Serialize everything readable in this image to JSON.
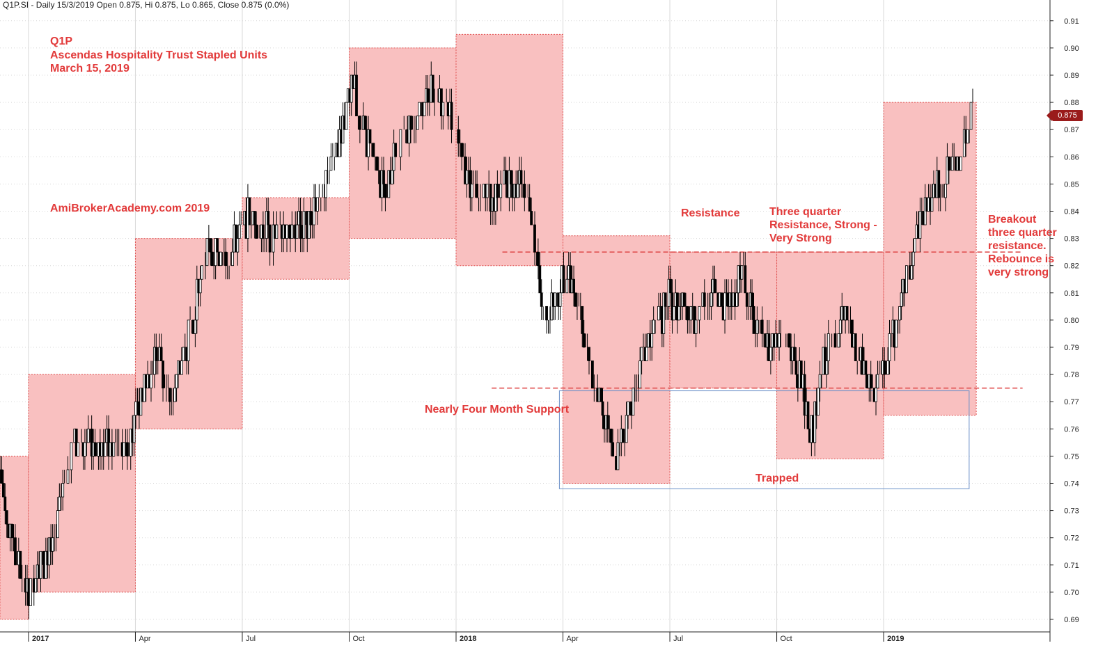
{
  "header": {
    "text": "Q1P.SI - Daily 15/3/2019 Open 0.875, Hi 0.875, Lo 0.865, Close 0.875 (0.0%)"
  },
  "annotations": {
    "title_line1": "Q1P",
    "title_line2": "Ascendas Hospitality Trust Stapled Units",
    "title_line3": "March 15, 2019",
    "watermark": "AmiBrokerAcademy.com  2019",
    "resistance": "Resistance",
    "three_quarter_1": "Three quarter",
    "three_quarter_2": "Resistance, Strong -",
    "three_quarter_3": "Very Strong",
    "breakout_1": "Breakout",
    "breakout_2": "three quarter",
    "breakout_3": "resistance.",
    "breakout_4": "Rebounce is",
    "breakout_5": "very strong",
    "support": "Nearly Four Month Support",
    "trapped": "Trapped"
  },
  "last_price_label": "0.875",
  "colors": {
    "box_fill": "#f9c0c0",
    "box_border": "#e05050",
    "annotation": "#e23a3a",
    "candle": "#000000",
    "trapped_box": "#6a90c8",
    "price_tag": "#9a1b1b"
  },
  "chart_data": {
    "type": "bar",
    "symbol": "Q1P.SI",
    "period": "Daily",
    "ylim": [
      0.685,
      0.915
    ],
    "y_ticks": [
      "0.69",
      "0.70",
      "0.71",
      "0.72",
      "0.73",
      "0.74",
      "0.75",
      "0.76",
      "0.77",
      "0.78",
      "0.79",
      "0.80",
      "0.81",
      "0.82",
      "0.83",
      "0.84",
      "0.85",
      "0.86",
      "0.87",
      "0.88",
      "0.89",
      "0.90",
      "0.91"
    ],
    "x_ticks": [
      "2017",
      "Apr",
      "Jul",
      "Oct",
      "2018",
      "Apr",
      "Jul",
      "Oct",
      "2019"
    ],
    "x_tick_month_index": [
      12,
      15,
      18,
      21,
      24,
      27,
      30,
      33,
      36
    ],
    "x_range_months": [
      11.2,
      38.5
    ],
    "price_path": [
      {
        "m": 11.2,
        "p": 0.745
      },
      {
        "m": 11.6,
        "p": 0.715
      },
      {
        "m": 12.0,
        "p": 0.7
      },
      {
        "m": 12.5,
        "p": 0.712
      },
      {
        "m": 13.0,
        "p": 0.74
      },
      {
        "m": 13.4,
        "p": 0.757
      },
      {
        "m": 13.8,
        "p": 0.755
      },
      {
        "m": 14.3,
        "p": 0.752
      },
      {
        "m": 14.8,
        "p": 0.752
      },
      {
        "m": 15.1,
        "p": 0.772
      },
      {
        "m": 15.6,
        "p": 0.788
      },
      {
        "m": 16.0,
        "p": 0.77
      },
      {
        "m": 16.6,
        "p": 0.8
      },
      {
        "m": 17.0,
        "p": 0.826
      },
      {
        "m": 17.6,
        "p": 0.823
      },
      {
        "m": 18.2,
        "p": 0.838
      },
      {
        "m": 18.9,
        "p": 0.83
      },
      {
        "m": 19.6,
        "p": 0.835
      },
      {
        "m": 20.1,
        "p": 0.84
      },
      {
        "m": 20.6,
        "p": 0.862
      },
      {
        "m": 21.1,
        "p": 0.885
      },
      {
        "m": 21.6,
        "p": 0.862
      },
      {
        "m": 22.0,
        "p": 0.848
      },
      {
        "m": 22.5,
        "p": 0.872
      },
      {
        "m": 22.9,
        "p": 0.872
      },
      {
        "m": 23.3,
        "p": 0.887
      },
      {
        "m": 23.8,
        "p": 0.876
      },
      {
        "m": 24.3,
        "p": 0.852
      },
      {
        "m": 24.9,
        "p": 0.845
      },
      {
        "m": 25.4,
        "p": 0.85
      },
      {
        "m": 25.9,
        "p": 0.852
      },
      {
        "m": 26.1,
        "p": 0.84
      },
      {
        "m": 26.5,
        "p": 0.8
      },
      {
        "m": 27.0,
        "p": 0.815
      },
      {
        "m": 27.4,
        "p": 0.81
      },
      {
        "m": 27.8,
        "p": 0.782
      },
      {
        "m": 28.2,
        "p": 0.76
      },
      {
        "m": 28.5,
        "p": 0.75
      },
      {
        "m": 29.0,
        "p": 0.775
      },
      {
        "m": 29.5,
        "p": 0.795
      },
      {
        "m": 30.0,
        "p": 0.808
      },
      {
        "m": 30.6,
        "p": 0.8
      },
      {
        "m": 31.1,
        "p": 0.81
      },
      {
        "m": 31.7,
        "p": 0.805
      },
      {
        "m": 32.0,
        "p": 0.82
      },
      {
        "m": 32.4,
        "p": 0.798
      },
      {
        "m": 32.8,
        "p": 0.792
      },
      {
        "m": 33.3,
        "p": 0.795
      },
      {
        "m": 33.7,
        "p": 0.775
      },
      {
        "m": 34.0,
        "p": 0.758
      },
      {
        "m": 34.4,
        "p": 0.79
      },
      {
        "m": 34.9,
        "p": 0.8
      },
      {
        "m": 35.3,
        "p": 0.785
      },
      {
        "m": 35.8,
        "p": 0.772
      },
      {
        "m": 36.2,
        "p": 0.79
      },
      {
        "m": 36.6,
        "p": 0.815
      },
      {
        "m": 37.1,
        "p": 0.84
      },
      {
        "m": 37.6,
        "p": 0.85
      },
      {
        "m": 38.1,
        "p": 0.86
      },
      {
        "m": 38.5,
        "p": 0.875
      }
    ],
    "range_boxes": [
      {
        "m0": 11.2,
        "m1": 12.0,
        "low": 0.69,
        "high": 0.75
      },
      {
        "m0": 12.0,
        "m1": 15.0,
        "low": 0.7,
        "high": 0.78
      },
      {
        "m0": 15.0,
        "m1": 18.0,
        "low": 0.76,
        "high": 0.83
      },
      {
        "m0": 18.0,
        "m1": 21.0,
        "low": 0.815,
        "high": 0.845
      },
      {
        "m0": 21.0,
        "m1": 24.0,
        "low": 0.83,
        "high": 0.9
      },
      {
        "m0": 24.0,
        "m1": 27.0,
        "low": 0.82,
        "high": 0.905
      },
      {
        "m0": 27.0,
        "m1": 30.0,
        "low": 0.74,
        "high": 0.831
      },
      {
        "m0": 30.0,
        "m1": 33.0,
        "low": 0.775,
        "high": 0.825
      },
      {
        "m0": 33.0,
        "m1": 36.0,
        "low": 0.749,
        "high": 0.825
      },
      {
        "m0": 36.0,
        "m1": 38.6,
        "low": 0.765,
        "high": 0.88
      }
    ],
    "support_line": {
      "price": 0.775,
      "m0": 25.0,
      "m1": 39.9
    },
    "resistance_line": {
      "price": 0.825,
      "m0": 25.3,
      "m1": 39.9
    },
    "trapped_box": {
      "m0": 26.9,
      "m1": 38.4,
      "low": 0.738,
      "high": 0.774
    },
    "last_close": 0.875
  }
}
